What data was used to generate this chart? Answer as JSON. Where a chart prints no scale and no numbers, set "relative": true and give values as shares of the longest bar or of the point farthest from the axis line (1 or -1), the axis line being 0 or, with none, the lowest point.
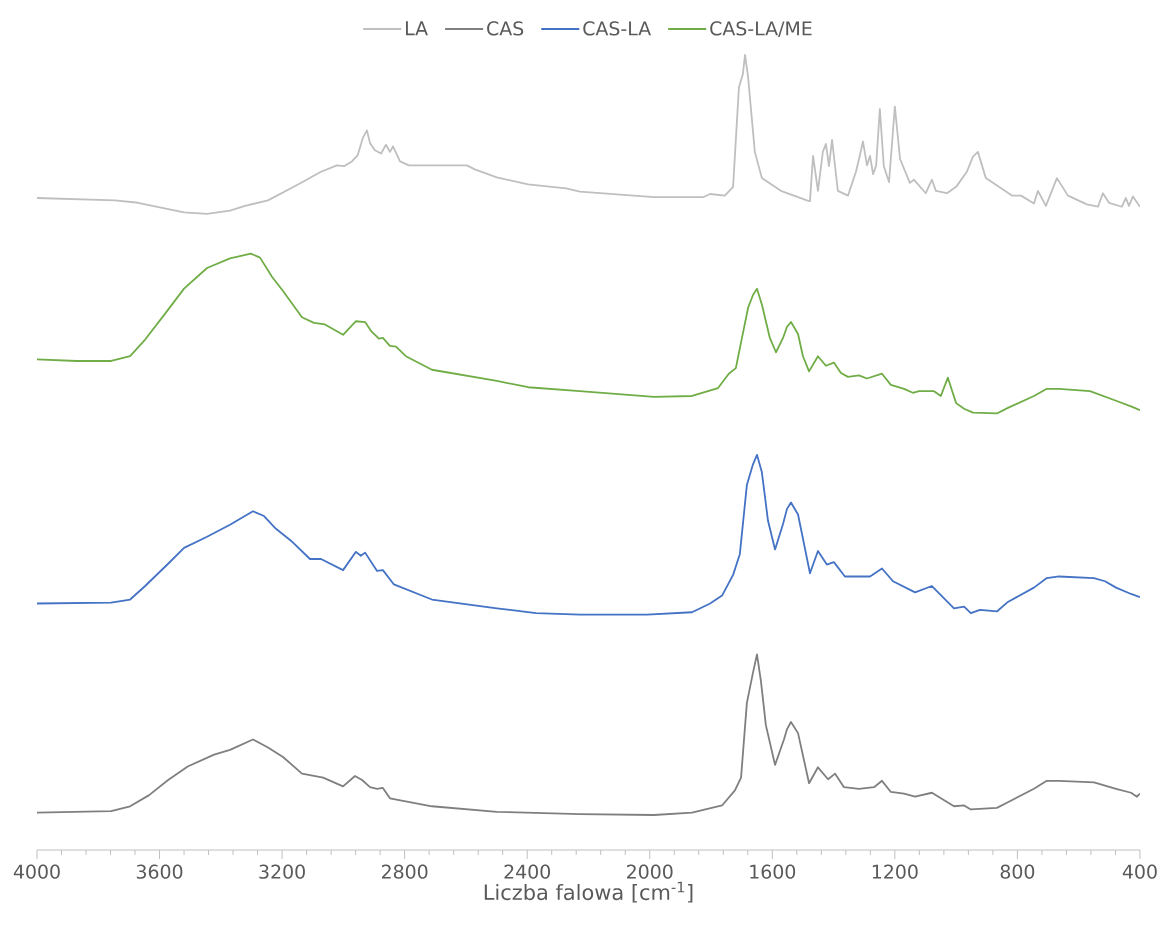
{
  "chart_data": {
    "type": "line",
    "relative": true,
    "xlabel": "Liczba falowa [cm$^{-1}$]",
    "xlim": [
      4000,
      400
    ],
    "xticks": [
      4000,
      3600,
      3200,
      2800,
      2400,
      2000,
      1600,
      1200,
      800,
      400
    ],
    "legend": "top",
    "series": [
      {
        "name": "LA",
        "color": "#bfbfbf",
        "x": [
          4000,
          3745,
          3670,
          3520,
          3445,
          3370,
          3321,
          3246,
          3148,
          3073,
          3021,
          2998,
          2972,
          2953,
          2936,
          2923,
          2913,
          2897,
          2877,
          2861,
          2848,
          2838,
          2815,
          2786,
          2685,
          2597,
          2571,
          2499,
          2397,
          2273,
          2228,
          1986,
          1826,
          1803,
          1755,
          1728,
          1709,
          1696,
          1689,
          1679,
          1657,
          1634,
          1572,
          1487,
          1477,
          1467,
          1451,
          1435,
          1425,
          1415,
          1405,
          1386,
          1353,
          1327,
          1317,
          1304,
          1291,
          1281,
          1271,
          1261,
          1249,
          1236,
          1219,
          1200,
          1183,
          1151,
          1138,
          1099,
          1079,
          1066,
          1030,
          1000,
          965,
          945,
          929,
          903,
          818,
          788,
          746,
          733,
          707,
          671,
          635,
          573,
          537,
          521,
          501,
          459,
          446,
          436,
          423,
          400
        ],
        "values": [
          0.82,
          0.817,
          0.814,
          0.802,
          0.8,
          0.804,
          0.81,
          0.817,
          0.837,
          0.853,
          0.861,
          0.86,
          0.866,
          0.874,
          0.896,
          0.905,
          0.889,
          0.88,
          0.876,
          0.887,
          0.878,
          0.885,
          0.866,
          0.861,
          0.861,
          0.861,
          0.856,
          0.846,
          0.837,
          0.832,
          0.828,
          0.821,
          0.821,
          0.825,
          0.823,
          0.834,
          0.959,
          0.976,
          1.0,
          0.972,
          0.878,
          0.845,
          0.829,
          0.817,
          0.816,
          0.873,
          0.829,
          0.878,
          0.888,
          0.86,
          0.893,
          0.829,
          0.823,
          0.853,
          0.869,
          0.891,
          0.861,
          0.873,
          0.85,
          0.861,
          0.932,
          0.86,
          0.84,
          0.935,
          0.869,
          0.839,
          0.843,
          0.826,
          0.843,
          0.829,
          0.826,
          0.834,
          0.853,
          0.872,
          0.878,
          0.845,
          0.823,
          0.823,
          0.813,
          0.829,
          0.81,
          0.845,
          0.823,
          0.812,
          0.809,
          0.826,
          0.814,
          0.809,
          0.82,
          0.81,
          0.822,
          0.809
        ]
      },
      {
        "name": "CAS",
        "color": "#7f7f7f",
        "x": [
          4000,
          3758,
          3696,
          3634,
          3572,
          3508,
          3422,
          3370,
          3295,
          3246,
          3197,
          3135,
          3066,
          3001,
          2962,
          2939,
          2913,
          2890,
          2871,
          2848,
          2711,
          2499,
          2228,
          1986,
          1862,
          1764,
          1722,
          1702,
          1683,
          1663,
          1650,
          1637,
          1621,
          1591,
          1562,
          1552,
          1539,
          1516,
          1480,
          1451,
          1418,
          1395,
          1366,
          1317,
          1268,
          1242,
          1213,
          1170,
          1134,
          1079,
          1007,
          974,
          952,
          867,
          831,
          746,
          704,
          664,
          550,
          478,
          429,
          410,
          400
        ],
        "values": [
          0.047,
          0.049,
          0.055,
          0.069,
          0.088,
          0.105,
          0.12,
          0.126,
          0.139,
          0.129,
          0.117,
          0.096,
          0.091,
          0.08,
          0.093,
          0.088,
          0.079,
          0.077,
          0.078,
          0.065,
          0.055,
          0.048,
          0.045,
          0.044,
          0.047,
          0.056,
          0.075,
          0.091,
          0.185,
          0.223,
          0.246,
          0.212,
          0.157,
          0.107,
          0.139,
          0.152,
          0.161,
          0.147,
          0.084,
          0.104,
          0.089,
          0.096,
          0.079,
          0.077,
          0.079,
          0.087,
          0.073,
          0.071,
          0.067,
          0.072,
          0.055,
          0.056,
          0.051,
          0.053,
          0.06,
          0.077,
          0.087,
          0.087,
          0.085,
          0.077,
          0.072,
          0.067,
          0.071
        ]
      },
      {
        "name": "CAS-LA",
        "color": "#4472c4",
        "x": [
          4000,
          3758,
          3696,
          3647,
          3572,
          3520,
          3445,
          3370,
          3295,
          3259,
          3220,
          3171,
          3109,
          3073,
          3001,
          2959,
          2943,
          2929,
          2890,
          2871,
          2835,
          2711,
          2499,
          2371,
          2228,
          2009,
          1862,
          1803,
          1764,
          1728,
          1706,
          1683,
          1663,
          1650,
          1634,
          1614,
          1591,
          1565,
          1552,
          1539,
          1516,
          1477,
          1451,
          1422,
          1399,
          1363,
          1317,
          1281,
          1242,
          1206,
          1170,
          1134,
          1079,
          1007,
          974,
          952,
          922,
          867,
          831,
          746,
          704,
          664,
          550,
          514,
          478,
          429,
          400
        ],
        "values": [
          0.31,
          0.311,
          0.315,
          0.332,
          0.36,
          0.38,
          0.394,
          0.409,
          0.426,
          0.42,
          0.404,
          0.389,
          0.366,
          0.366,
          0.352,
          0.375,
          0.37,
          0.374,
          0.351,
          0.352,
          0.334,
          0.315,
          0.304,
          0.298,
          0.296,
          0.296,
          0.299,
          0.31,
          0.32,
          0.346,
          0.372,
          0.459,
          0.485,
          0.497,
          0.475,
          0.414,
          0.378,
          0.41,
          0.429,
          0.437,
          0.422,
          0.348,
          0.376,
          0.359,
          0.362,
          0.344,
          0.344,
          0.344,
          0.354,
          0.338,
          0.331,
          0.324,
          0.332,
          0.304,
          0.306,
          0.298,
          0.302,
          0.3,
          0.312,
          0.33,
          0.342,
          0.344,
          0.342,
          0.338,
          0.33,
          0.322,
          0.318
        ]
      },
      {
        "name": "CAS-LA/ME",
        "color": "#70ad47",
        "x": [
          4000,
          3870,
          3758,
          3696,
          3647,
          3583,
          3520,
          3445,
          3370,
          3302,
          3272,
          3233,
          3197,
          3135,
          3096,
          3060,
          3001,
          2959,
          2929,
          2910,
          2884,
          2871,
          2848,
          2828,
          2796,
          2711,
          2499,
          2397,
          2228,
          1986,
          1862,
          1777,
          1742,
          1719,
          1699,
          1679,
          1663,
          1650,
          1634,
          1608,
          1588,
          1565,
          1552,
          1539,
          1516,
          1500,
          1480,
          1451,
          1425,
          1399,
          1376,
          1353,
          1317,
          1291,
          1242,
          1213,
          1170,
          1141,
          1121,
          1072,
          1050,
          1027,
          1000,
          974,
          945,
          867,
          831,
          746,
          704,
          664,
          563,
          478,
          423,
          400
        ],
        "values": [
          0.617,
          0.615,
          0.615,
          0.621,
          0.642,
          0.674,
          0.706,
          0.732,
          0.744,
          0.75,
          0.745,
          0.721,
          0.703,
          0.67,
          0.663,
          0.661,
          0.648,
          0.665,
          0.664,
          0.653,
          0.643,
          0.644,
          0.634,
          0.633,
          0.621,
          0.604,
          0.59,
          0.582,
          0.577,
          0.57,
          0.571,
          0.581,
          0.599,
          0.606,
          0.644,
          0.682,
          0.698,
          0.706,
          0.686,
          0.644,
          0.626,
          0.644,
          0.658,
          0.664,
          0.649,
          0.621,
          0.602,
          0.621,
          0.609,
          0.613,
          0.6,
          0.595,
          0.597,
          0.593,
          0.599,
          0.585,
          0.58,
          0.575,
          0.577,
          0.577,
          0.571,
          0.594,
          0.562,
          0.555,
          0.55,
          0.549,
          0.556,
          0.571,
          0.58,
          0.58,
          0.577,
          0.565,
          0.557,
          0.553
        ]
      }
    ]
  }
}
